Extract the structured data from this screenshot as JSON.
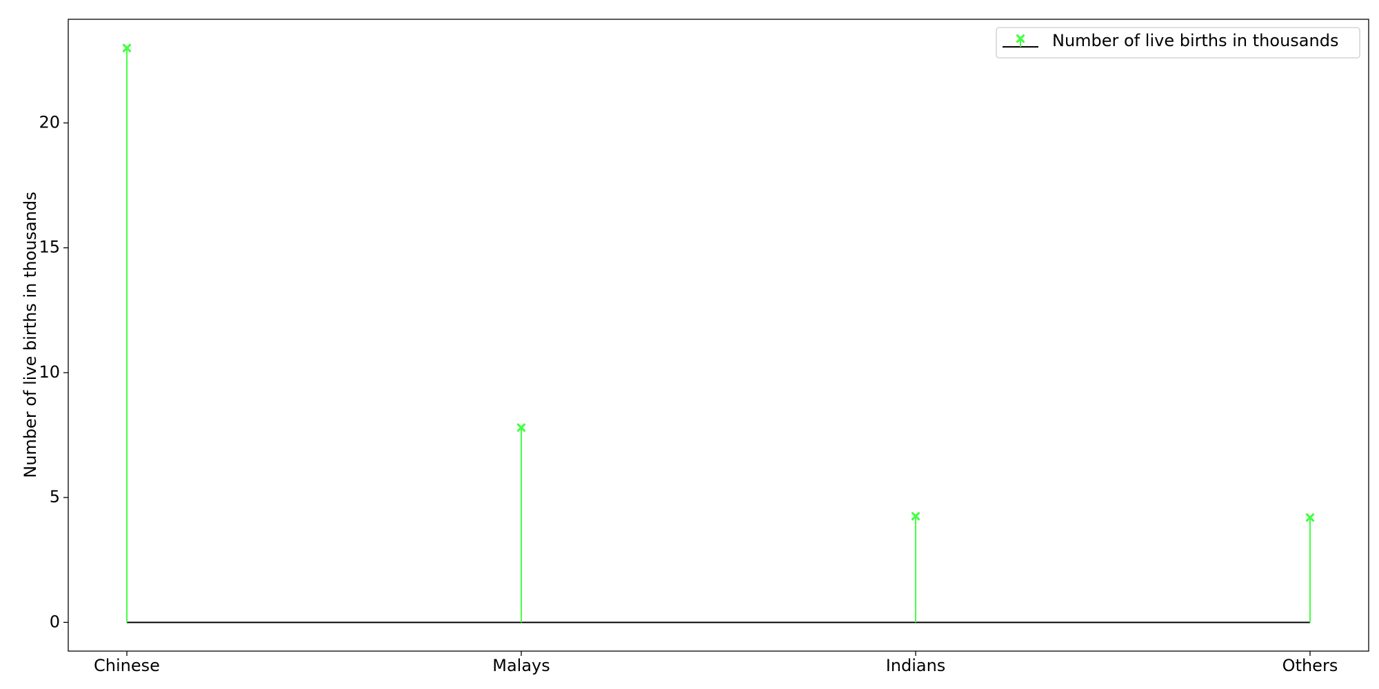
{
  "chart_data": {
    "type": "stem",
    "categories": [
      "Chinese",
      "Malays",
      "Indians",
      "Others"
    ],
    "series": [
      {
        "name": "Number of live births in thousands",
        "values": [
          23.0,
          7.8,
          4.25,
          4.2
        ],
        "color": "#44ff44",
        "marker": "x"
      }
    ],
    "ylabel": "Number of live births in thousands",
    "xlabel": "",
    "title": "",
    "ylim": [
      -1.15,
      24.15
    ],
    "yticks": [
      0,
      5,
      10,
      15,
      20
    ],
    "baseline": 0,
    "baseline_color": "#000000",
    "legend": {
      "position": "top-right",
      "entries": [
        "Number of live births in thousands"
      ]
    },
    "grid": false
  }
}
